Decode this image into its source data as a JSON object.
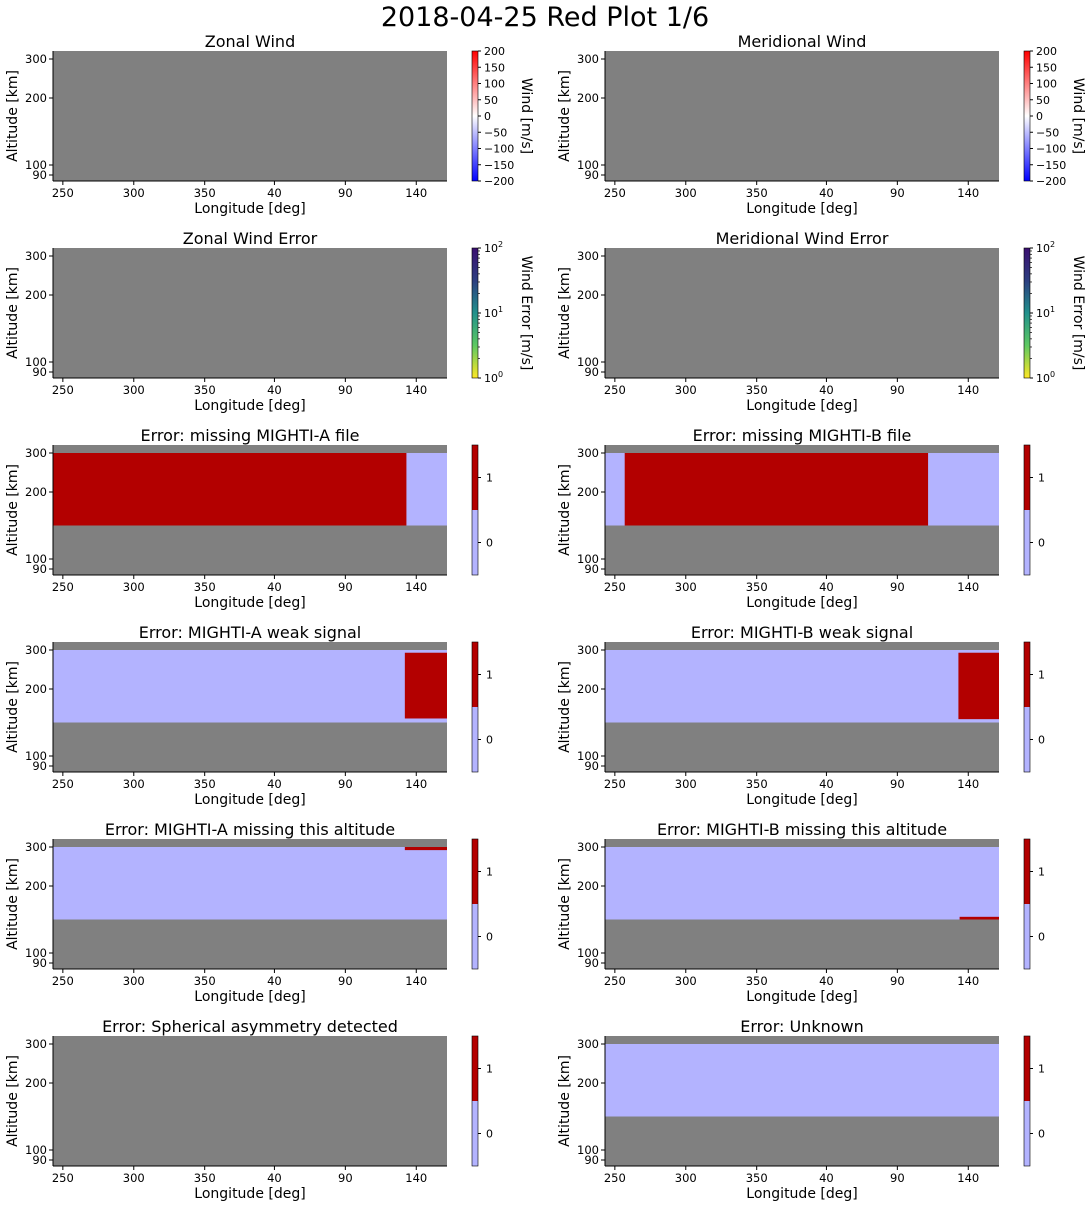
{
  "figure": {
    "title": "2018-04-25 Red Plot 1/6"
  },
  "colors": {
    "nodata": "#808080",
    "flag_off": "#b3b3ff",
    "flag_on": "#b30000"
  },
  "chart_data": [
    {
      "type": "heatmap",
      "title": "Zonal Wind",
      "xlabel": "Longitude [deg]",
      "ylabel": "Altitude [km]",
      "xticklabels": [
        "250",
        "300",
        "350",
        "40",
        "90",
        "140"
      ],
      "yticks": [
        90,
        100,
        200,
        300
      ],
      "colorbar": {
        "kind": "diverging",
        "label": "Wind [m/s]",
        "range": [
          -200,
          200
        ],
        "ticks": [
          "200",
          "150",
          "100",
          "50",
          "0",
          "−50",
          "−100",
          "−150",
          "−200"
        ]
      },
      "regions": []
    },
    {
      "type": "heatmap",
      "title": "Meridional Wind",
      "xlabel": "Longitude [deg]",
      "ylabel": "Altitude [km]",
      "xticklabels": [
        "250",
        "300",
        "350",
        "40",
        "90",
        "140"
      ],
      "yticks": [
        90,
        100,
        200,
        300
      ],
      "colorbar": {
        "kind": "diverging",
        "label": "Wind [m/s]",
        "range": [
          -200,
          200
        ],
        "ticks": [
          "200",
          "150",
          "100",
          "50",
          "0",
          "−50",
          "−100",
          "−150",
          "−200"
        ]
      },
      "regions": []
    },
    {
      "type": "heatmap",
      "title": "Zonal Wind Error",
      "xlabel": "Longitude [deg]",
      "ylabel": "Altitude [km]",
      "xticklabels": [
        "250",
        "300",
        "350",
        "40",
        "90",
        "140"
      ],
      "yticks": [
        90,
        100,
        200,
        300
      ],
      "colorbar": {
        "kind": "log",
        "label": "Wind Error [m/s]",
        "range": [
          1,
          100
        ],
        "ticks": [
          {
            "base": "10",
            "exp": "2"
          },
          {
            "base": "10",
            "exp": "1"
          },
          {
            "base": "10",
            "exp": "0"
          }
        ]
      },
      "regions": []
    },
    {
      "type": "heatmap",
      "title": "Meridional Wind Error",
      "xlabel": "Longitude [deg]",
      "ylabel": "Altitude [km]",
      "xticklabels": [
        "250",
        "300",
        "350",
        "40",
        "90",
        "140"
      ],
      "yticks": [
        90,
        100,
        200,
        300
      ],
      "colorbar": {
        "kind": "log",
        "label": "Wind Error [m/s]",
        "range": [
          1,
          100
        ],
        "ticks": [
          {
            "base": "10",
            "exp": "2"
          },
          {
            "base": "10",
            "exp": "1"
          },
          {
            "base": "10",
            "exp": "0"
          }
        ]
      },
      "regions": []
    },
    {
      "type": "heatmap",
      "title": "Error: missing MIGHTI-A file",
      "xlabel": "Longitude [deg]",
      "ylabel": "Altitude [km]",
      "xticklabels": [
        "250",
        "300",
        "350",
        "40",
        "90",
        "140"
      ],
      "yticks": [
        90,
        100,
        200,
        300
      ],
      "colorbar": {
        "kind": "flag",
        "label": "",
        "range": [
          -0.5,
          1.5
        ],
        "ticks": [
          "1",
          "0"
        ]
      },
      "regions": [
        {
          "value": 0,
          "x": [
            0,
            1
          ],
          "y": [
            150,
            300
          ]
        },
        {
          "value": 1,
          "x": [
            0,
            0.897
          ],
          "y": [
            150,
            300
          ]
        }
      ]
    },
    {
      "type": "heatmap",
      "title": "Error: missing MIGHTI-B file",
      "xlabel": "Longitude [deg]",
      "ylabel": "Altitude [km]",
      "xticklabels": [
        "250",
        "300",
        "350",
        "40",
        "90",
        "140"
      ],
      "yticks": [
        90,
        100,
        200,
        300
      ],
      "colorbar": {
        "kind": "flag",
        "label": "",
        "range": [
          -0.5,
          1.5
        ],
        "ticks": [
          "1",
          "0"
        ]
      },
      "regions": [
        {
          "value": 0,
          "x": [
            0,
            1
          ],
          "y": [
            150,
            300
          ]
        },
        {
          "value": 1,
          "x": [
            0.05,
            0.82
          ],
          "y": [
            150,
            300
          ]
        }
      ]
    },
    {
      "type": "heatmap",
      "title": "Error: MIGHTI-A weak signal",
      "xlabel": "Longitude [deg]",
      "ylabel": "Altitude [km]",
      "xticklabels": [
        "250",
        "300",
        "350",
        "40",
        "90",
        "140"
      ],
      "yticks": [
        90,
        100,
        200,
        300
      ],
      "colorbar": {
        "kind": "flag",
        "label": "",
        "range": [
          -0.5,
          1.5
        ],
        "ticks": [
          "1",
          "0"
        ]
      },
      "regions": [
        {
          "value": 0,
          "x": [
            0,
            1
          ],
          "y": [
            150,
            300
          ]
        },
        {
          "value": 1,
          "x": [
            0.893,
            1
          ],
          "y": [
            156,
            293
          ]
        }
      ]
    },
    {
      "type": "heatmap",
      "title": "Error: MIGHTI-B weak signal",
      "xlabel": "Longitude [deg]",
      "ylabel": "Altitude [km]",
      "xticklabels": [
        "250",
        "300",
        "350",
        "40",
        "90",
        "140"
      ],
      "yticks": [
        90,
        100,
        200,
        300
      ],
      "colorbar": {
        "kind": "flag",
        "label": "",
        "range": [
          -0.5,
          1.5
        ],
        "ticks": [
          "1",
          "0"
        ]
      },
      "regions": [
        {
          "value": 0,
          "x": [
            0,
            1
          ],
          "y": [
            150,
            300
          ]
        },
        {
          "value": 1,
          "x": [
            0.897,
            1
          ],
          "y": [
            155,
            293
          ]
        }
      ]
    },
    {
      "type": "heatmap",
      "title": "Error: MIGHTI-A missing this altitude",
      "xlabel": "Longitude [deg]",
      "ylabel": "Altitude [km]",
      "xticklabels": [
        "250",
        "300",
        "350",
        "40",
        "90",
        "140"
      ],
      "yticks": [
        90,
        100,
        200,
        300
      ],
      "colorbar": {
        "kind": "flag",
        "label": "",
        "range": [
          -0.5,
          1.5
        ],
        "ticks": [
          "1",
          "0"
        ]
      },
      "regions": [
        {
          "value": 0,
          "x": [
            0,
            1
          ],
          "y": [
            150,
            300
          ]
        },
        {
          "value": 1,
          "x": [
            0.893,
            1
          ],
          "y": [
            292,
            300
          ]
        }
      ]
    },
    {
      "type": "heatmap",
      "title": "Error: MIGHTI-B missing this altitude",
      "xlabel": "Longitude [deg]",
      "ylabel": "Altitude [km]",
      "xticklabels": [
        "250",
        "300",
        "350",
        "40",
        "90",
        "140"
      ],
      "yticks": [
        90,
        100,
        200,
        300
      ],
      "colorbar": {
        "kind": "flag",
        "label": "",
        "range": [
          -0.5,
          1.5
        ],
        "ticks": [
          "1",
          "0"
        ]
      },
      "regions": [
        {
          "value": 0,
          "x": [
            0,
            1
          ],
          "y": [
            150,
            300
          ]
        },
        {
          "value": 1,
          "x": [
            0.9,
            1
          ],
          "y": [
            150,
            154
          ]
        }
      ]
    },
    {
      "type": "heatmap",
      "title": "Error: Spherical asymmetry detected",
      "xlabel": "Longitude [deg]",
      "ylabel": "Altitude [km]",
      "xticklabels": [
        "250",
        "300",
        "350",
        "40",
        "90",
        "140"
      ],
      "yticks": [
        90,
        100,
        200,
        300
      ],
      "colorbar": {
        "kind": "flag",
        "label": "",
        "range": [
          -0.5,
          1.5
        ],
        "ticks": [
          "1",
          "0"
        ]
      },
      "regions": []
    },
    {
      "type": "heatmap",
      "title": "Error: Unknown",
      "xlabel": "Longitude [deg]",
      "ylabel": "Altitude [km]",
      "xticklabels": [
        "250",
        "300",
        "350",
        "40",
        "90",
        "140"
      ],
      "yticks": [
        90,
        100,
        200,
        300
      ],
      "colorbar": {
        "kind": "flag",
        "label": "",
        "range": [
          -0.5,
          1.5
        ],
        "ticks": [
          "1",
          "0"
        ]
      },
      "regions": [
        {
          "value": 0,
          "x": [
            0,
            1
          ],
          "y": [
            150,
            300
          ]
        }
      ]
    }
  ]
}
